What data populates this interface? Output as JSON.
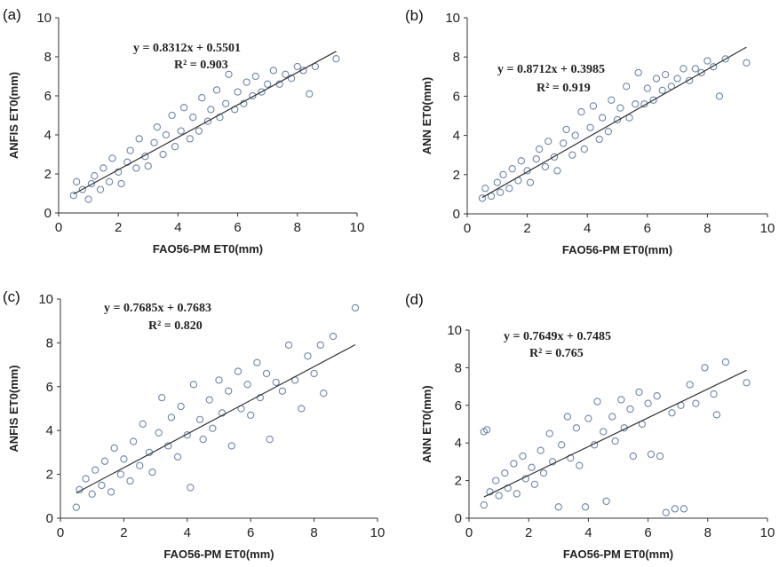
{
  "chart_data": [
    {
      "type": "scatter",
      "panel_label": "(a)",
      "xlabel": "FAO56-PM ET0(mm)",
      "ylabel": "ANFIS ET0(mm)",
      "xlim": [
        0,
        10
      ],
      "ylim": [
        0,
        10
      ],
      "xticks": [
        0,
        2,
        4,
        6,
        8,
        10
      ],
      "yticks": [
        0,
        2,
        4,
        6,
        8,
        10
      ],
      "equation": "y = 0.8312x + 0.5501",
      "r2": "R² = 0.903",
      "fit": {
        "slope": 0.8312,
        "intercept": 0.5501,
        "x_range": [
          0.5,
          9.3
        ]
      },
      "points": [
        [
          0.5,
          0.9
        ],
        [
          0.6,
          1.6
        ],
        [
          0.8,
          1.2
        ],
        [
          1.0,
          0.7
        ],
        [
          1.1,
          1.5
        ],
        [
          1.2,
          1.9
        ],
        [
          1.4,
          1.2
        ],
        [
          1.5,
          2.3
        ],
        [
          1.7,
          1.6
        ],
        [
          1.8,
          2.8
        ],
        [
          2.0,
          2.1
        ],
        [
          2.1,
          1.5
        ],
        [
          2.3,
          2.6
        ],
        [
          2.4,
          3.2
        ],
        [
          2.6,
          2.3
        ],
        [
          2.7,
          3.8
        ],
        [
          2.9,
          2.9
        ],
        [
          3.0,
          2.4
        ],
        [
          3.2,
          3.6
        ],
        [
          3.3,
          4.4
        ],
        [
          3.5,
          3.0
        ],
        [
          3.6,
          4.0
        ],
        [
          3.8,
          5.0
        ],
        [
          3.9,
          3.4
        ],
        [
          4.1,
          4.2
        ],
        [
          4.2,
          5.4
        ],
        [
          4.4,
          3.8
        ],
        [
          4.5,
          4.9
        ],
        [
          4.7,
          4.2
        ],
        [
          4.8,
          5.9
        ],
        [
          5.0,
          4.7
        ],
        [
          5.1,
          5.3
        ],
        [
          5.3,
          6.3
        ],
        [
          5.4,
          4.9
        ],
        [
          5.6,
          5.6
        ],
        [
          5.7,
          7.1
        ],
        [
          5.9,
          5.3
        ],
        [
          6.0,
          6.2
        ],
        [
          6.2,
          5.6
        ],
        [
          6.3,
          6.7
        ],
        [
          6.5,
          6.0
        ],
        [
          6.6,
          7.0
        ],
        [
          6.8,
          6.2
        ],
        [
          7.0,
          6.6
        ],
        [
          7.2,
          7.3
        ],
        [
          7.4,
          6.6
        ],
        [
          7.6,
          7.1
        ],
        [
          7.8,
          6.9
        ],
        [
          8.0,
          7.5
        ],
        [
          8.2,
          7.3
        ],
        [
          8.4,
          6.1
        ],
        [
          8.6,
          7.5
        ],
        [
          9.3,
          7.9
        ]
      ]
    },
    {
      "type": "scatter",
      "panel_label": "(b)",
      "xlabel": "FAO56-PM ET0(mm)",
      "ylabel": "ANN ET0(mm)",
      "xlim": [
        0,
        10
      ],
      "ylim": [
        0,
        10
      ],
      "xticks": [
        0,
        2,
        4,
        6,
        8,
        10
      ],
      "yticks": [
        0,
        2,
        4,
        6,
        8,
        10
      ],
      "equation": "y = 0.8712x + 0.3985",
      "r2": "R² = 0.919",
      "fit": {
        "slope": 0.8712,
        "intercept": 0.3985,
        "x_range": [
          0.5,
          9.3
        ]
      },
      "points": [
        [
          0.5,
          0.8
        ],
        [
          0.6,
          1.3
        ],
        [
          0.8,
          0.9
        ],
        [
          1.0,
          1.6
        ],
        [
          1.1,
          1.1
        ],
        [
          1.2,
          2.0
        ],
        [
          1.4,
          1.3
        ],
        [
          1.5,
          2.3
        ],
        [
          1.7,
          1.7
        ],
        [
          1.8,
          2.7
        ],
        [
          2.0,
          2.2
        ],
        [
          2.1,
          1.6
        ],
        [
          2.3,
          2.8
        ],
        [
          2.4,
          3.3
        ],
        [
          2.6,
          2.4
        ],
        [
          2.7,
          3.7
        ],
        [
          2.9,
          2.9
        ],
        [
          3.0,
          2.2
        ],
        [
          3.2,
          3.6
        ],
        [
          3.3,
          4.3
        ],
        [
          3.5,
          3.0
        ],
        [
          3.6,
          4.0
        ],
        [
          3.8,
          5.2
        ],
        [
          3.9,
          3.3
        ],
        [
          4.1,
          4.4
        ],
        [
          4.2,
          5.5
        ],
        [
          4.4,
          3.8
        ],
        [
          4.5,
          4.9
        ],
        [
          4.7,
          4.2
        ],
        [
          4.8,
          5.8
        ],
        [
          5.0,
          4.8
        ],
        [
          5.1,
          5.4
        ],
        [
          5.3,
          6.5
        ],
        [
          5.4,
          4.9
        ],
        [
          5.6,
          5.6
        ],
        [
          5.7,
          7.2
        ],
        [
          5.9,
          5.6
        ],
        [
          6.0,
          6.4
        ],
        [
          6.2,
          5.8
        ],
        [
          6.3,
          6.9
        ],
        [
          6.5,
          6.3
        ],
        [
          6.6,
          7.1
        ],
        [
          6.8,
          6.5
        ],
        [
          7.0,
          6.9
        ],
        [
          7.2,
          7.4
        ],
        [
          7.4,
          6.8
        ],
        [
          7.6,
          7.4
        ],
        [
          7.8,
          7.2
        ],
        [
          8.0,
          7.8
        ],
        [
          8.2,
          7.5
        ],
        [
          8.4,
          6.0
        ],
        [
          8.6,
          7.9
        ],
        [
          9.3,
          7.7
        ]
      ]
    },
    {
      "type": "scatter",
      "panel_label": "(c)",
      "xlabel": "FAO56-PM ET0(mm)",
      "ylabel": "ANFIS ET0(mm)",
      "xlim": [
        0,
        10
      ],
      "ylim": [
        0,
        10
      ],
      "xticks": [
        0,
        2,
        4,
        6,
        8,
        10
      ],
      "yticks": [
        0,
        2,
        4,
        6,
        8,
        10
      ],
      "equation": "y = 0.7685x + 0.7683",
      "r2": "R² = 0.820",
      "fit": {
        "slope": 0.7685,
        "intercept": 0.7683,
        "x_range": [
          0.5,
          9.3
        ]
      },
      "points": [
        [
          0.5,
          0.5
        ],
        [
          0.6,
          1.3
        ],
        [
          0.8,
          1.8
        ],
        [
          1.0,
          1.1
        ],
        [
          1.1,
          2.2
        ],
        [
          1.3,
          1.5
        ],
        [
          1.4,
          2.6
        ],
        [
          1.6,
          1.2
        ],
        [
          1.7,
          3.2
        ],
        [
          1.9,
          2.0
        ],
        [
          2.0,
          2.7
        ],
        [
          2.2,
          1.7
        ],
        [
          2.3,
          3.5
        ],
        [
          2.5,
          2.4
        ],
        [
          2.6,
          4.3
        ],
        [
          2.8,
          3.0
        ],
        [
          2.9,
          2.1
        ],
        [
          3.1,
          3.9
        ],
        [
          3.2,
          5.5
        ],
        [
          3.4,
          3.3
        ],
        [
          3.5,
          4.6
        ],
        [
          3.7,
          2.8
        ],
        [
          3.8,
          5.1
        ],
        [
          4.0,
          3.8
        ],
        [
          4.1,
          1.4
        ],
        [
          4.2,
          6.1
        ],
        [
          4.4,
          4.5
        ],
        [
          4.5,
          3.6
        ],
        [
          4.7,
          5.4
        ],
        [
          4.8,
          4.1
        ],
        [
          5.0,
          6.3
        ],
        [
          5.1,
          4.8
        ],
        [
          5.3,
          5.8
        ],
        [
          5.4,
          3.3
        ],
        [
          5.6,
          6.7
        ],
        [
          5.7,
          5.0
        ],
        [
          5.9,
          6.1
        ],
        [
          6.0,
          4.7
        ],
        [
          6.2,
          7.1
        ],
        [
          6.3,
          5.5
        ],
        [
          6.5,
          6.6
        ],
        [
          6.6,
          3.6
        ],
        [
          6.8,
          6.2
        ],
        [
          7.0,
          5.8
        ],
        [
          7.2,
          7.9
        ],
        [
          7.4,
          6.3
        ],
        [
          7.6,
          5.0
        ],
        [
          7.8,
          7.4
        ],
        [
          8.0,
          6.6
        ],
        [
          8.2,
          7.9
        ],
        [
          8.3,
          5.7
        ],
        [
          8.6,
          8.3
        ],
        [
          9.3,
          9.6
        ]
      ]
    },
    {
      "type": "scatter",
      "panel_label": "(d)",
      "xlabel": "FAO56-PM ET0(mm)",
      "ylabel": "ANN ET0(mm)",
      "xlim": [
        0,
        10
      ],
      "ylim": [
        0,
        10
      ],
      "xticks": [
        0,
        2,
        4,
        6,
        8,
        10
      ],
      "yticks": [
        0,
        2,
        4,
        6,
        8,
        10
      ],
      "equation": "y = 0.7649x + 0.7485",
      "r2": "R² = 0.765",
      "fit": {
        "slope": 0.7649,
        "intercept": 0.7485,
        "x_range": [
          0.5,
          9.3
        ]
      },
      "points": [
        [
          0.5,
          4.6
        ],
        [
          0.6,
          4.7
        ],
        [
          0.5,
          0.7
        ],
        [
          0.7,
          1.4
        ],
        [
          0.9,
          2.0
        ],
        [
          1.0,
          1.2
        ],
        [
          1.2,
          2.4
        ],
        [
          1.3,
          1.6
        ],
        [
          1.5,
          2.9
        ],
        [
          1.6,
          1.3
        ],
        [
          1.8,
          3.3
        ],
        [
          1.9,
          2.1
        ],
        [
          2.1,
          2.7
        ],
        [
          2.2,
          1.8
        ],
        [
          2.4,
          3.6
        ],
        [
          2.5,
          2.4
        ],
        [
          2.7,
          4.5
        ],
        [
          2.8,
          3.0
        ],
        [
          3.0,
          0.6
        ],
        [
          3.1,
          3.9
        ],
        [
          3.3,
          5.4
        ],
        [
          3.4,
          3.2
        ],
        [
          3.6,
          4.8
        ],
        [
          3.7,
          2.8
        ],
        [
          3.9,
          0.6
        ],
        [
          4.0,
          5.3
        ],
        [
          4.2,
          3.9
        ],
        [
          4.3,
          6.2
        ],
        [
          4.5,
          4.6
        ],
        [
          4.6,
          0.9
        ],
        [
          4.8,
          5.4
        ],
        [
          4.9,
          4.1
        ],
        [
          5.1,
          6.3
        ],
        [
          5.2,
          4.8
        ],
        [
          5.4,
          5.8
        ],
        [
          5.5,
          3.3
        ],
        [
          5.7,
          6.7
        ],
        [
          5.8,
          5.0
        ],
        [
          6.0,
          6.1
        ],
        [
          6.1,
          3.4
        ],
        [
          6.3,
          6.5
        ],
        [
          6.4,
          3.3
        ],
        [
          6.6,
          0.3
        ],
        [
          6.8,
          5.6
        ],
        [
          6.9,
          0.5
        ],
        [
          7.1,
          6.0
        ],
        [
          7.2,
          0.5
        ],
        [
          7.4,
          7.1
        ],
        [
          7.6,
          6.1
        ],
        [
          7.9,
          8.0
        ],
        [
          8.2,
          6.6
        ],
        [
          8.3,
          5.5
        ],
        [
          8.6,
          8.3
        ],
        [
          9.3,
          7.2
        ]
      ]
    }
  ]
}
